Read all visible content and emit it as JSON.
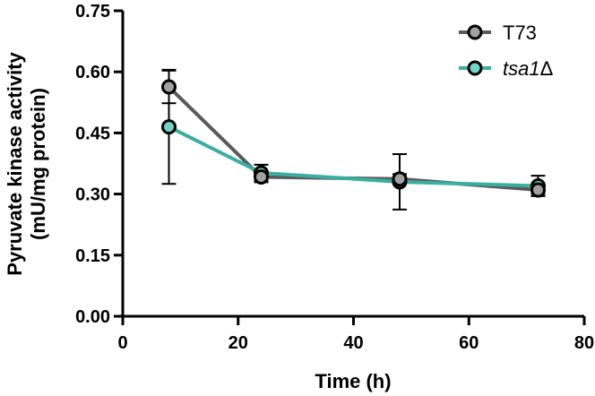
{
  "chart_data": {
    "type": "line",
    "title": "",
    "xlabel": "Time (h)",
    "ylabel_line1": "Pyruvate kinase activity",
    "ylabel_line2": "(mU/mg protein)",
    "xlim": [
      0,
      80
    ],
    "ylim": [
      0,
      0.75
    ],
    "x_ticks": [
      0,
      20,
      40,
      60,
      80
    ],
    "x_tick_labels": [
      "0",
      "20",
      "40",
      "60",
      "80"
    ],
    "y_ticks": [
      0,
      0.15,
      0.3,
      0.45,
      0.6,
      0.75
    ],
    "y_tick_labels": [
      "0.00",
      "0.15",
      "0.30",
      "0.45",
      "0.60",
      "0.75"
    ],
    "grid": false,
    "legend_position": "top-right",
    "series": [
      {
        "name": "T73",
        "label_main": "T73",
        "label_suffix": "",
        "italic": false,
        "color": "#5a5a5a",
        "marker_fill": "#a0a0a0",
        "x": [
          8,
          24,
          48,
          72
        ],
        "y": [
          0.563,
          0.342,
          0.337,
          0.31
        ],
        "err": [
          0.04,
          0.013,
          0.012,
          0.01
        ]
      },
      {
        "name": "tsa1Δ",
        "label_main": "tsa1",
        "label_suffix": "Δ",
        "italic": true,
        "color": "#3aafa0",
        "marker_fill": "#6fd6c6",
        "x": [
          8,
          24,
          48,
          72
        ],
        "y": [
          0.465,
          0.352,
          0.33,
          0.32
        ],
        "err": [
          0.14,
          0.02,
          0.068,
          0.025
        ]
      }
    ]
  }
}
